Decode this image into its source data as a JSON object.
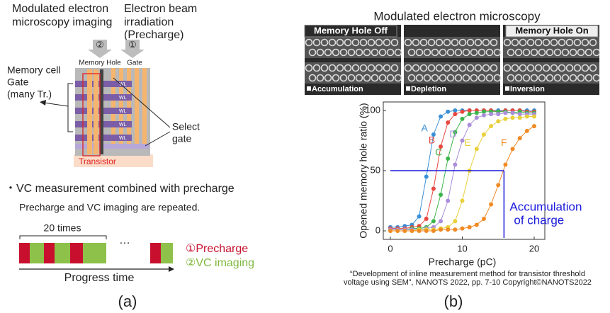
{
  "panel_a": {
    "imaging_label": [
      "Modulated electron",
      "microscopy imaging"
    ],
    "beam_label": [
      "Electron beam",
      "irradiation",
      "(Precharge)"
    ],
    "marker_2": "②",
    "marker_1": "①",
    "memory_hole": "Memory Hole",
    "gate": "Gate",
    "memory_cell_gate": [
      "Memory cell",
      "Gate",
      "(many Tr.)"
    ],
    "wl_labels": [
      "WL",
      "WL",
      "WL",
      "WL",
      "WL"
    ],
    "select_gate": [
      "Select",
      "gate"
    ],
    "transistor": "Transistor",
    "heading": "・VC measurement combined with precharge",
    "subheading": "Precharge and VC imaging are repeated.",
    "repeat_label": "20 times",
    "ellipsis": "…",
    "legend_precharge": "①Precharge",
    "legend_imaging": "②VC imaging",
    "axis_label": "Progress time",
    "caption": "(a)"
  },
  "panel_b": {
    "title": "Modulated electron microscopy",
    "images": [
      {
        "header": "Memory Hole Off",
        "footer": "Accumulation"
      },
      {
        "footer": "Depletion"
      },
      {
        "header": "Memory Hole On",
        "footer": "Inversion"
      }
    ],
    "citation": [
      "“Development of inline measurement method for transistor threshold",
      "voltage using SEM”, NANOTS 2022, pp. 7-10 Copyright©NANOTS2022"
    ],
    "caption": "(b)"
  },
  "chart_data": {
    "type": "line",
    "x_label": "Precharge (pC)",
    "y_label": "Opened memory hole ratio (%)",
    "x": [
      0,
      1,
      2,
      3,
      4,
      5,
      6,
      7,
      8,
      9,
      10,
      11,
      12,
      13,
      14,
      15,
      16,
      17,
      18,
      19,
      20
    ],
    "series": [
      {
        "name": "A",
        "color": "#3a8fd6",
        "values": [
          3,
          3,
          4,
          5,
          12,
          45,
          80,
          95,
          99,
          100,
          100,
          100,
          100,
          100,
          100,
          100,
          100,
          100,
          100,
          100,
          100
        ]
      },
      {
        "name": "B",
        "color": "#e8473f",
        "values": [
          2,
          2,
          2,
          3,
          4,
          10,
          35,
          70,
          90,
          97,
          99,
          100,
          100,
          100,
          100,
          99,
          100,
          100,
          100,
          99,
          99
        ]
      },
      {
        "name": "C",
        "color": "#3cb54a",
        "values": [
          1,
          1,
          1,
          2,
          2,
          3,
          8,
          30,
          60,
          82,
          93,
          97,
          98,
          99,
          99,
          99,
          99,
          98,
          99,
          98,
          98
        ]
      },
      {
        "name": "D",
        "color": "#a98ddb",
        "values": [
          1,
          1,
          1,
          1,
          1,
          2,
          3,
          8,
          25,
          55,
          75,
          88,
          94,
          96,
          97,
          97,
          98,
          98,
          97,
          97,
          97
        ]
      },
      {
        "name": "E",
        "color": "#e8d03a",
        "values": [
          0,
          0,
          0,
          0,
          1,
          1,
          1,
          2,
          3,
          8,
          25,
          50,
          68,
          80,
          87,
          91,
          93,
          94,
          94,
          95,
          95
        ]
      },
      {
        "name": "F",
        "color": "#f08a24",
        "values": [
          0,
          0,
          0,
          0,
          0,
          0,
          0,
          1,
          1,
          1,
          2,
          3,
          5,
          10,
          22,
          38,
          55,
          68,
          77,
          83,
          87
        ]
      }
    ],
    "xlim": [
      0,
      20
    ],
    "ylim": [
      0,
      100
    ],
    "xticks": [
      0,
      10,
      20
    ],
    "yticks": [
      0,
      50,
      100
    ],
    "threshold": {
      "x": 15.8,
      "y": 50,
      "color": "#1a1adb"
    },
    "annotation": [
      "Accumulation",
      "of charge"
    ]
  }
}
